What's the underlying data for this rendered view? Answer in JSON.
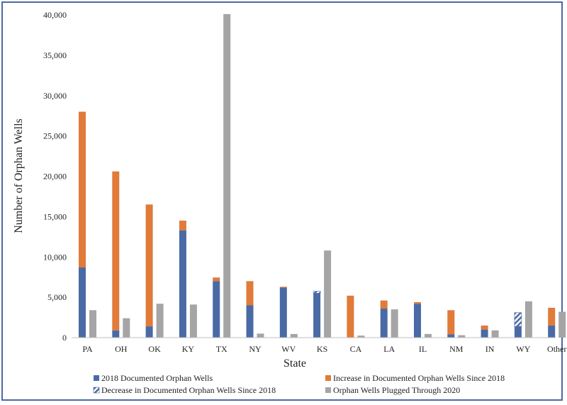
{
  "chart_data": {
    "type": "bar",
    "xlabel": "State",
    "ylabel": "Number of Orphan Wells",
    "ylim": [
      0,
      40000
    ],
    "yticks": [
      0,
      5000,
      10000,
      15000,
      20000,
      25000,
      30000,
      35000,
      40000
    ],
    "ytick_labels": [
      "0",
      "5,000",
      "10,000",
      "15,000",
      "20,000",
      "25,000",
      "30,000",
      "35,000",
      "40,000"
    ],
    "categories": [
      "PA",
      "OH",
      "OK",
      "KY",
      "TX",
      "NY",
      "WV",
      "KS",
      "CA",
      "LA",
      "IL",
      "NM",
      "IN",
      "WY",
      "Other"
    ],
    "series": [
      {
        "name": "2018 Documented Orphan Wells",
        "color": "#4a6aa6",
        "values": [
          8700,
          900,
          1400,
          13300,
          7000,
          4000,
          6200,
          5500,
          0,
          3600,
          4200,
          400,
          1000,
          1400,
          1500
        ]
      },
      {
        "name": "Increase in Documented Orphan Wells Since 2018",
        "color": "#e07b39",
        "values": [
          19300,
          19700,
          15100,
          1200,
          450,
          3000,
          100,
          0,
          5200,
          1000,
          200,
          3000,
          500,
          0,
          2200
        ]
      },
      {
        "name": "Decrease in Documented Orphan Wells Since 2018",
        "color": "#4a6aa6",
        "pattern": "hatched",
        "values": [
          0,
          0,
          0,
          0,
          0,
          0,
          0,
          250,
          0,
          0,
          0,
          0,
          0,
          1700,
          0
        ]
      },
      {
        "name": "Orphan Wells Plugged Through 2020",
        "color": "#a5a5a5",
        "values": [
          3400,
          2400,
          4200,
          4100,
          40100,
          500,
          450,
          10800,
          250,
          3500,
          450,
          300,
          900,
          4500,
          3200
        ]
      }
    ],
    "grid": false,
    "legend_position": "bottom"
  }
}
